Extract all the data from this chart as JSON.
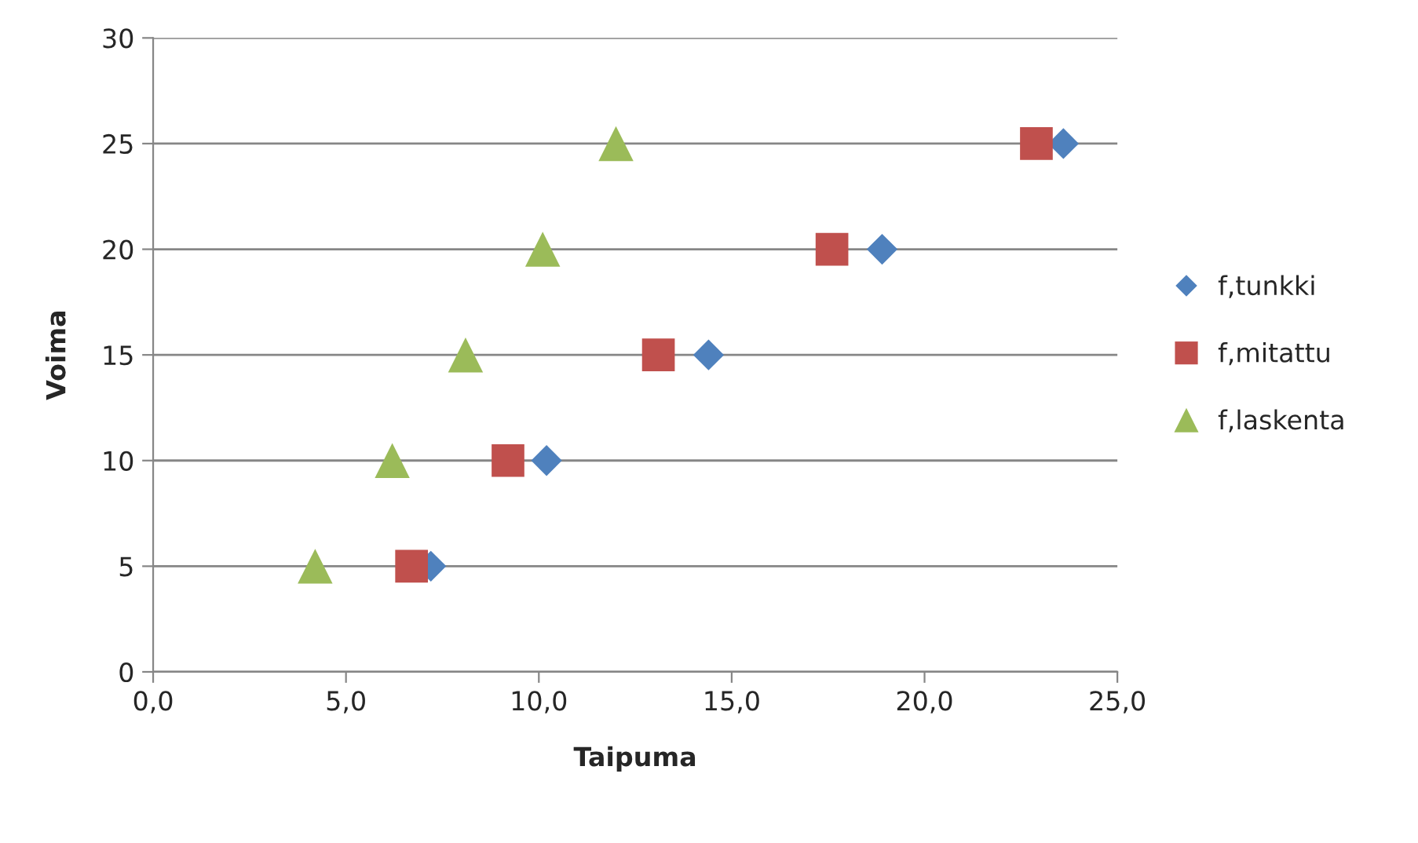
{
  "chart_data": {
    "type": "scatter",
    "xlabel": "Taipuma",
    "ylabel": "Voima",
    "series": [
      {
        "name": "f,tunkki",
        "color": "#4f81bd",
        "marker": "diamond",
        "x": [
          7.2,
          10.2,
          14.4,
          18.9,
          23.6
        ],
        "values": [
          5,
          10,
          15,
          20,
          25
        ]
      },
      {
        "name": "f,mitattu",
        "color": "#c0504d",
        "marker": "square",
        "x": [
          6.7,
          9.2,
          13.1,
          17.6,
          22.9
        ],
        "values": [
          5,
          10,
          15,
          20,
          25
        ]
      },
      {
        "name": "f,laskenta",
        "color": "#9bbb59",
        "marker": "triangle",
        "x": [
          4.2,
          6.2,
          8.1,
          10.1,
          12.0
        ],
        "values": [
          5,
          10,
          15,
          20,
          25
        ]
      }
    ],
    "xlim": [
      0,
      25
    ],
    "xticks": [
      {
        "value": 0,
        "label": "0,0"
      },
      {
        "value": 5,
        "label": "5,0"
      },
      {
        "value": 10,
        "label": "10,0"
      },
      {
        "value": 15,
        "label": "15,0"
      },
      {
        "value": 20,
        "label": "20,0"
      },
      {
        "value": 25,
        "label": "25,0"
      }
    ],
    "ylim": [
      0,
      30
    ],
    "yticks": [
      0,
      5,
      10,
      15,
      20,
      25,
      30
    ],
    "grid": "y",
    "legend": "right"
  }
}
